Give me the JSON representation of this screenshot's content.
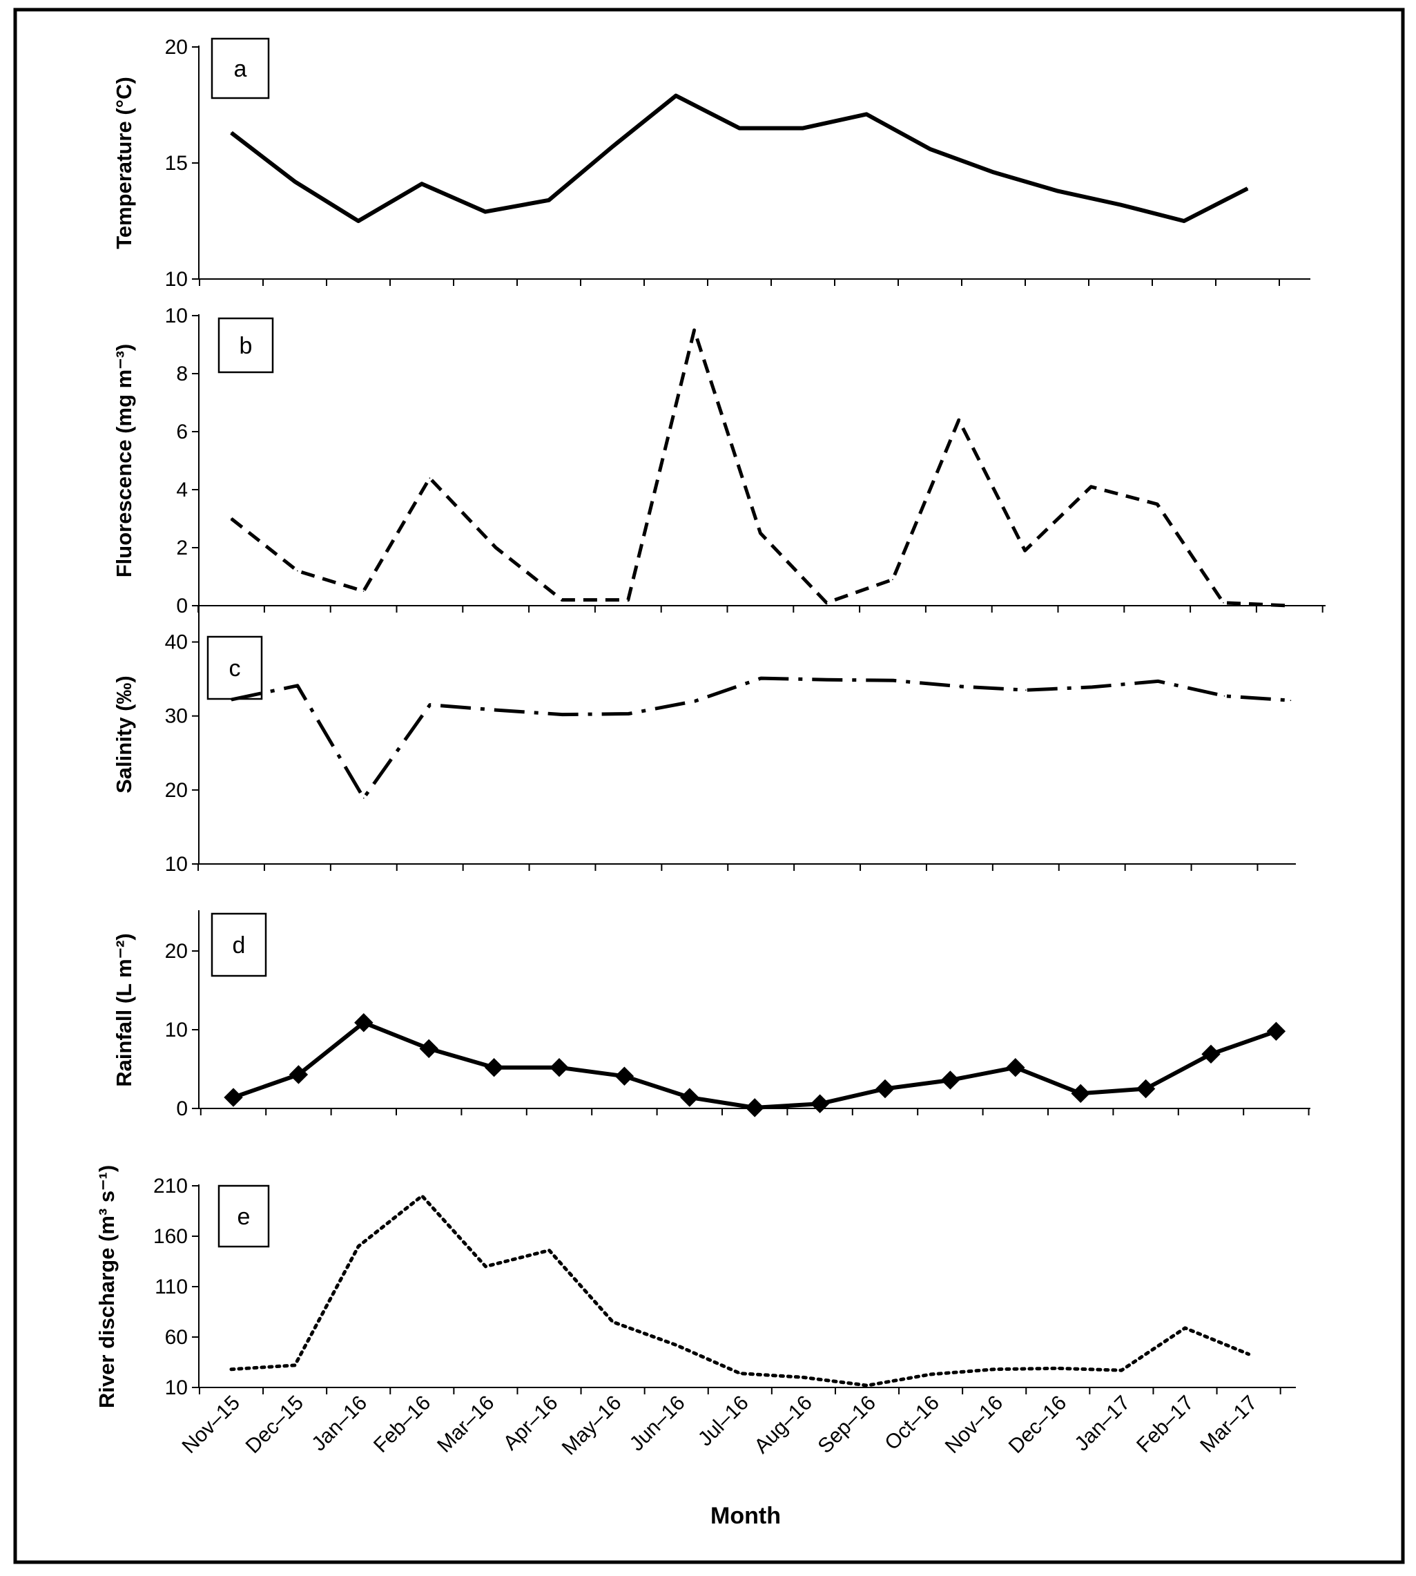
{
  "chart_data": {
    "type": "line",
    "x_title": "Month",
    "categories": [
      "Nov–15",
      "Dec–15",
      "Jan–16",
      "Feb–16",
      "Mar–16",
      "Apr–16",
      "May–16",
      "Jun–16",
      "Jul–16",
      "Aug–16",
      "Sep–16",
      "Oct–16",
      "Nov–16",
      "Dec–16",
      "Jan–17",
      "Feb–17",
      "Mar–17"
    ],
    "panels": [
      {
        "id": "a",
        "letter": "a",
        "ylabel": "Temperature (°C)",
        "ylim": [
          10,
          20
        ],
        "yticks": [
          10,
          15,
          20
        ],
        "yticks_labels": [
          "10",
          "15",
          "20"
        ],
        "line_style": "solid",
        "markers": false,
        "values": [
          16.3,
          14.2,
          12.5,
          14.1,
          12.9,
          13.4,
          15.7,
          17.9,
          16.5,
          16.5,
          17.1,
          15.6,
          14.6,
          13.8,
          13.2,
          12.5,
          13.9
        ]
      },
      {
        "id": "b",
        "letter": "b",
        "ylabel": "Fluorescence (mg m⁻³)",
        "ylim": [
          0,
          10
        ],
        "yticks": [
          0,
          2,
          4,
          6,
          8,
          10
        ],
        "yticks_labels": [
          "0",
          "2",
          "4",
          "6",
          "8",
          "10"
        ],
        "line_style": "dashed",
        "markers": false,
        "values": [
          3.0,
          1.2,
          0.5,
          4.4,
          2.0,
          0.2,
          0.2,
          9.5,
          2.5,
          0.1,
          0.9,
          6.4,
          1.9,
          4.1,
          3.5,
          0.1,
          0.0
        ]
      },
      {
        "id": "c",
        "letter": "c",
        "ylabel": "Salinity (‰)",
        "ylim": [
          10,
          45
        ],
        "yticks": [
          10,
          20,
          30,
          40
        ],
        "yticks_labels": [
          "10",
          "20",
          "30",
          "40"
        ],
        "line_style": "dashdot",
        "markers": false,
        "values": [
          32.2,
          34.1,
          18.9,
          31.5,
          30.8,
          30.2,
          30.3,
          32.0,
          35.1,
          34.9,
          34.8,
          34.0,
          33.5,
          33.9,
          34.7,
          32.7,
          32.1
        ]
      },
      {
        "id": "d",
        "letter": "d",
        "ylabel": "Rainfall (L m⁻²)",
        "ylim": [
          0,
          25
        ],
        "yticks": [
          0,
          10,
          20
        ],
        "yticks_labels": [
          "0",
          "10",
          "20"
        ],
        "line_style": "solid",
        "markers": true,
        "values": [
          1.4,
          4.3,
          10.9,
          7.6,
          5.2,
          5.2,
          4.1,
          1.4,
          0.1,
          0.6,
          2.5,
          3.6,
          5.2,
          1.9,
          2.5,
          6.9,
          9.8
        ]
      },
      {
        "id": "e",
        "letter": "e",
        "ylabel": "River discharge (m³ s⁻¹)",
        "ylim": [
          10,
          210
        ],
        "yticks": [
          10,
          60,
          110,
          160,
          210
        ],
        "yticks_labels": [
          "10",
          "60",
          "110",
          "160",
          "210"
        ],
        "line_style": "dotted",
        "markers": false,
        "values": [
          28,
          32,
          150,
          200,
          130,
          146,
          75,
          52,
          24,
          20,
          12,
          23,
          28,
          29,
          27,
          69,
          43
        ]
      }
    ]
  }
}
